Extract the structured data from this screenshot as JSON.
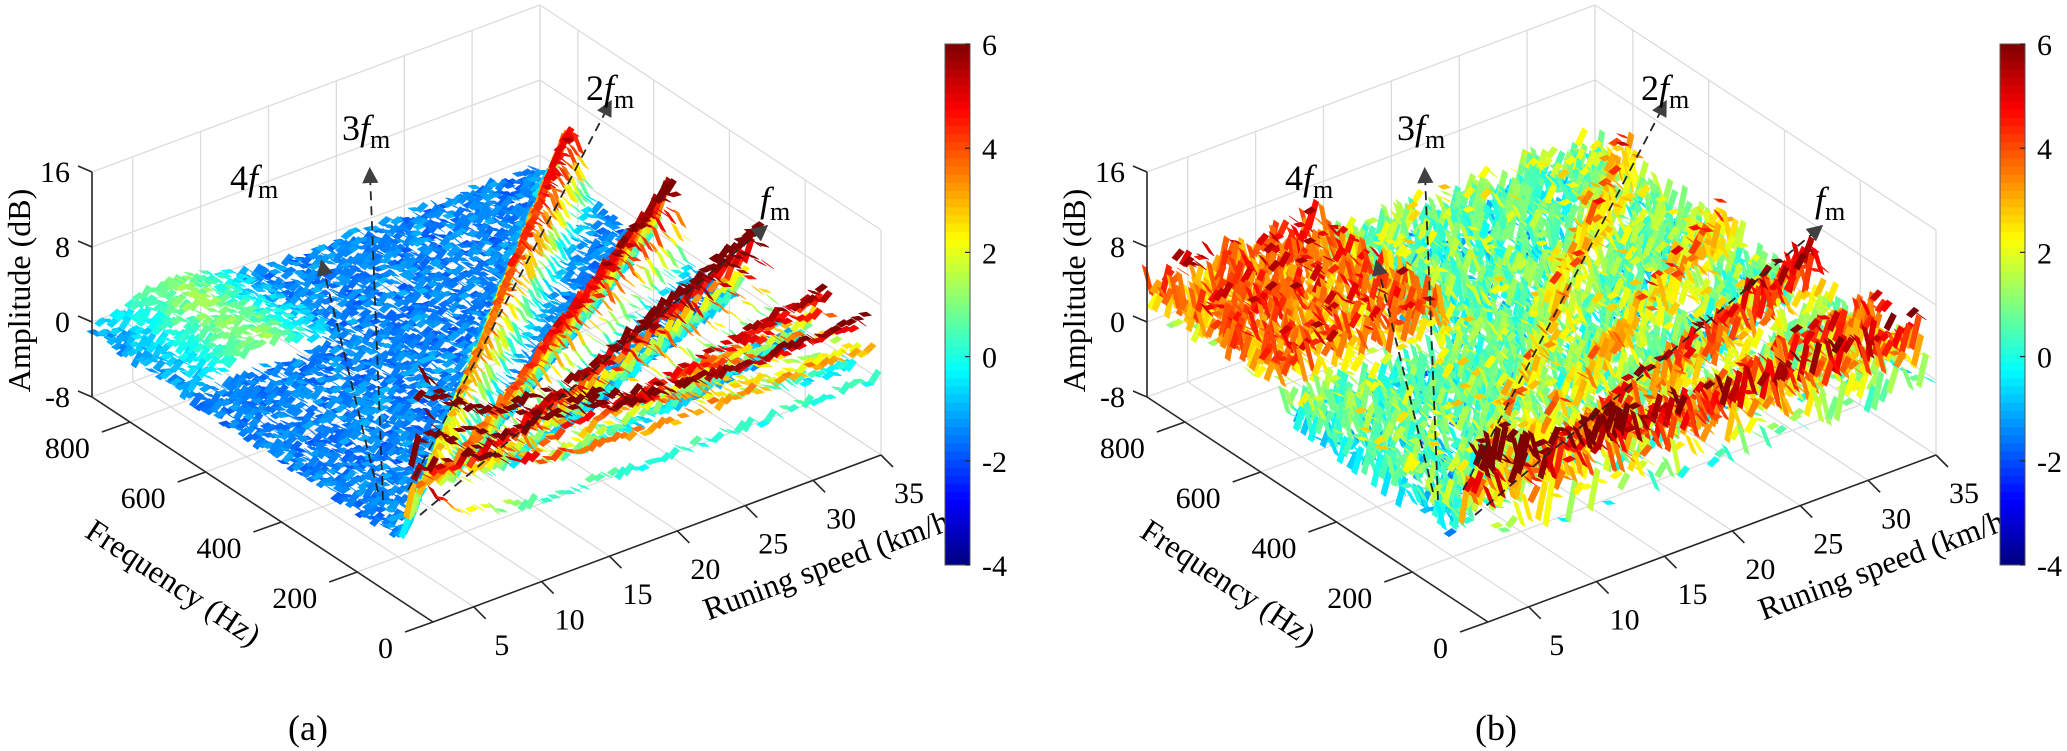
{
  "figure": {
    "panels": [
      "(a)",
      "(b)"
    ]
  },
  "colormap": {
    "name": "jet",
    "stops": [
      "#00007f",
      "#0000ff",
      "#007fff",
      "#00ffff",
      "#7fff7f",
      "#ffff00",
      "#ff7f00",
      "#ff0000",
      "#7f0000"
    ]
  },
  "chart_data": [
    {
      "type": "surface3d",
      "panel_label": "(a)",
      "xlabel": "Runing speed (km/h)",
      "ylabel": "Frequency (Hz)",
      "zlabel": "Amplitude (dB)",
      "x_ticks": [
        "5",
        "10",
        "15",
        "20",
        "25",
        "30",
        "35"
      ],
      "y_ticks": [
        "0",
        "200",
        "400",
        "600",
        "800"
      ],
      "z_ticks": [
        "-8",
        "0",
        "8",
        "16"
      ],
      "xlim": [
        2,
        35
      ],
      "ylim": [
        0,
        900
      ],
      "zlim": [
        -8,
        16
      ],
      "grid": true,
      "colorbar": {
        "ticks": [
          "-4",
          "-2",
          "0",
          "2",
          "4",
          "6"
        ],
        "range": [
          -4,
          6
        ],
        "placement": "right"
      },
      "annotations": [
        {
          "label_prefix": "4",
          "label_f": "f",
          "label_sub": "m",
          "harmonic": 4
        },
        {
          "label_prefix": "3",
          "label_f": "f",
          "label_sub": "m",
          "harmonic": 3
        },
        {
          "label_prefix": "2",
          "label_f": "f",
          "label_sub": "m",
          "harmonic": 2
        },
        {
          "label_prefix": "",
          "label_f": "f",
          "label_sub": "m",
          "harmonic": 1
        }
      ],
      "background_level_db": -1.5,
      "ridges": [
        {
          "name": "4fm",
          "peak_db": 5.5
        },
        {
          "name": "3fm",
          "peak_db": 6.5
        },
        {
          "name": "2fm",
          "peak_db": 8
        },
        {
          "name": "fm",
          "peak_db": 6
        },
        {
          "name": "low-frequency band",
          "peak_db": 6
        }
      ]
    },
    {
      "type": "surface3d",
      "panel_label": "(b)",
      "xlabel": "Runing speed (km/h)",
      "ylabel": "Frequency (Hz)",
      "zlabel": "Amplitude (dB)",
      "x_ticks": [
        "5",
        "10",
        "15",
        "20",
        "25",
        "30",
        "35"
      ],
      "y_ticks": [
        "0",
        "200",
        "400",
        "600",
        "800"
      ],
      "z_ticks": [
        "-8",
        "0",
        "8",
        "16"
      ],
      "xlim": [
        2,
        35
      ],
      "ylim": [
        0,
        900
      ],
      "zlim": [
        -8,
        16
      ],
      "grid": true,
      "colorbar": {
        "ticks": [
          "-4",
          "-2",
          "0",
          "2",
          "4",
          "6"
        ],
        "range": [
          -4,
          6
        ],
        "placement": "right"
      },
      "annotations": [
        {
          "label_prefix": "4",
          "label_f": "f",
          "label_sub": "m",
          "harmonic": 4
        },
        {
          "label_prefix": "3",
          "label_f": "f",
          "label_sub": "m",
          "harmonic": 3
        },
        {
          "label_prefix": "2",
          "label_f": "f",
          "label_sub": "m",
          "harmonic": 2
        },
        {
          "label_prefix": "",
          "label_f": "f",
          "label_sub": "m",
          "harmonic": 1
        }
      ],
      "background_level_db": 0.5,
      "ridges": [
        {
          "name": "4fm",
          "peak_db": 3
        },
        {
          "name": "3fm",
          "peak_db": 3
        },
        {
          "name": "2fm",
          "peak_db": 5
        },
        {
          "name": "fm",
          "peak_db": 4
        },
        {
          "name": "low-frequency band",
          "peak_db": 5
        }
      ]
    }
  ]
}
